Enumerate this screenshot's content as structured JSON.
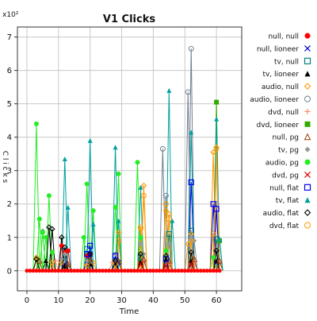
{
  "chart_data": {
    "type": "line",
    "title": "V1 Clicks",
    "xlabel": "Time",
    "ylabel": "C l i c k s",
    "y_multiplier": "x10²",
    "xlim": [
      -3,
      68
    ],
    "ylim": [
      -0.6,
      7.3
    ],
    "x_ticks": [
      0,
      10,
      20,
      30,
      40,
      50,
      60
    ],
    "y_ticks": [
      0,
      1,
      2,
      3,
      4,
      5,
      6,
      7
    ],
    "grid": true,
    "legend_position": "right",
    "series": [
      {
        "name": "null, null",
        "color": "#ff0000",
        "marker": "dot",
        "points": [
          [
            11,
            0.75
          ],
          [
            12,
            0.55
          ],
          [
            13,
            0.6
          ],
          [
            19,
            0.45
          ],
          [
            20,
            0.5
          ]
        ]
      },
      {
        "name": "null, lioneer",
        "color": "#0000cc",
        "marker": "x",
        "points": [
          [
            12,
            0.2
          ],
          [
            20,
            0.5
          ],
          [
            29,
            0.25
          ],
          [
            44,
            0.15
          ],
          [
            52,
            0.2
          ],
          [
            60,
            0.25
          ]
        ]
      },
      {
        "name": "tv, null",
        "color": "#008080",
        "marker": "square",
        "points": [
          [
            19,
            0.65
          ],
          [
            28,
            0.3
          ],
          [
            36,
            0.4
          ],
          [
            45,
            1.1
          ],
          [
            52,
            1.2
          ],
          [
            60,
            0.95
          ]
        ]
      },
      {
        "name": "tv, lioneer",
        "color": "#000000",
        "marker": "triangle-filled",
        "points": [
          [
            6,
            0.3
          ],
          [
            12,
            0.15
          ],
          [
            20,
            0.2
          ],
          [
            28,
            0.2
          ],
          [
            36,
            0.25
          ],
          [
            44,
            0.35
          ],
          [
            52,
            0.3
          ],
          [
            60,
            0.3
          ]
        ]
      },
      {
        "name": "audio, null",
        "color": "#ff9900",
        "marker": "diamond-open",
        "points": [
          [
            3,
            0.4
          ],
          [
            8,
            0.25
          ],
          [
            11,
            0.25
          ],
          [
            19,
            0.15
          ],
          [
            21,
            0.25
          ],
          [
            28,
            0.2
          ],
          [
            29,
            1.15
          ],
          [
            36,
            1.25
          ],
          [
            37,
            2.55
          ],
          [
            44,
            1.8
          ],
          [
            45,
            1.7
          ],
          [
            51,
            0.8
          ],
          [
            52,
            1.1
          ],
          [
            59,
            3.55
          ],
          [
            60,
            3.7
          ]
        ]
      },
      {
        "name": "audio, lioneer",
        "color": "#708090",
        "marker": "circle-open",
        "points": [
          [
            12,
            0.4
          ],
          [
            20,
            0.3
          ],
          [
            28,
            0.3
          ],
          [
            43,
            3.65
          ],
          [
            44,
            2.25
          ],
          [
            51,
            5.35
          ],
          [
            52,
            6.65
          ],
          [
            60,
            2.0
          ]
        ]
      },
      {
        "name": "dvd, null",
        "color": "#ff8c69",
        "marker": "plus",
        "points": [
          [
            9,
            0.3
          ],
          [
            19,
            0.2
          ],
          [
            27,
            0.25
          ],
          [
            37,
            0.3
          ],
          [
            45,
            0.2
          ],
          [
            53,
            0.25
          ],
          [
            61,
            0.3
          ]
        ]
      },
      {
        "name": "dvd, lioneer",
        "color": "#33aa00",
        "marker": "square-filled",
        "points": [
          [
            60,
            5.05
          ],
          [
            61,
            0.9
          ]
        ]
      },
      {
        "name": "null, pg",
        "color": "#993300",
        "marker": "triangle-open",
        "points": [
          [
            4,
            0.3
          ],
          [
            13,
            0.2
          ],
          [
            20,
            0.35
          ],
          [
            29,
            0.3
          ],
          [
            37,
            0.35
          ],
          [
            45,
            0.3
          ],
          [
            53,
            0.35
          ],
          [
            61,
            0.3
          ]
        ]
      },
      {
        "name": "tv, pg",
        "color": "#999999",
        "marker": "diamond-filled",
        "points": [
          [
            5,
            1.2
          ],
          [
            11,
            0.35
          ],
          [
            12,
            0.5
          ],
          [
            19,
            0.3
          ],
          [
            28,
            0.5
          ],
          [
            36,
            0.8
          ],
          [
            37,
            0.5
          ],
          [
            45,
            0.8
          ],
          [
            52,
            1.0
          ],
          [
            53,
            0.9
          ]
        ]
      },
      {
        "name": "audio, pg",
        "color": "#22ee22",
        "marker": "dot",
        "points": [
          [
            3,
            4.4
          ],
          [
            4,
            1.55
          ],
          [
            5,
            1.15
          ],
          [
            6,
            1.0
          ],
          [
            7,
            2.25
          ],
          [
            8,
            0.55
          ],
          [
            18,
            1.0
          ],
          [
            19,
            2.6
          ],
          [
            21,
            1.8
          ],
          [
            28,
            1.9
          ],
          [
            29,
            2.9
          ],
          [
            35,
            3.25
          ],
          [
            36,
            1.0
          ],
          [
            44,
            0.6
          ],
          [
            59,
            0.4
          ]
        ]
      },
      {
        "name": "dvd, pg",
        "color": "#dd0000",
        "marker": "x",
        "points": [
          [
            36,
            0.2
          ],
          [
            44,
            0.15
          ],
          [
            52,
            0.2
          ]
        ]
      },
      {
        "name": "null, flat",
        "color": "#0000ee",
        "marker": "square",
        "points": [
          [
            19,
            0.5
          ],
          [
            20,
            0.75
          ],
          [
            28,
            0.45
          ],
          [
            44,
            0.35
          ],
          [
            52,
            2.65
          ],
          [
            59,
            2.0
          ],
          [
            60,
            1.85
          ]
        ]
      },
      {
        "name": "tv, flat",
        "color": "#00a0a0",
        "marker": "triangle-filled",
        "points": [
          [
            12,
            3.35
          ],
          [
            13,
            1.9
          ],
          [
            20,
            3.9
          ],
          [
            21,
            1.4
          ],
          [
            28,
            3.7
          ],
          [
            29,
            1.5
          ],
          [
            36,
            2.5
          ],
          [
            45,
            5.4
          ],
          [
            46,
            1.5
          ],
          [
            52,
            4.15
          ],
          [
            60,
            4.55
          ],
          [
            61,
            0.95
          ]
        ]
      },
      {
        "name": "audio, flat",
        "color": "#000000",
        "marker": "diamond-open",
        "points": [
          [
            3,
            0.35
          ],
          [
            7,
            1.3
          ],
          [
            8,
            1.25
          ],
          [
            11,
            1.0
          ],
          [
            12,
            0.7
          ],
          [
            20,
            0.5
          ],
          [
            28,
            0.3
          ],
          [
            36,
            0.5
          ],
          [
            44,
            0.45
          ],
          [
            52,
            0.55
          ],
          [
            60,
            0.6
          ]
        ]
      },
      {
        "name": "dvd, flat",
        "color": "#ff9900",
        "marker": "circle-open",
        "points": [
          [
            29,
            0.9
          ],
          [
            36,
            1.3
          ],
          [
            37,
            2.25
          ],
          [
            44,
            2.0
          ],
          [
            45,
            1.55
          ],
          [
            52,
            0.9
          ],
          [
            59,
            1.1
          ],
          [
            60,
            3.65
          ]
        ]
      }
    ]
  }
}
